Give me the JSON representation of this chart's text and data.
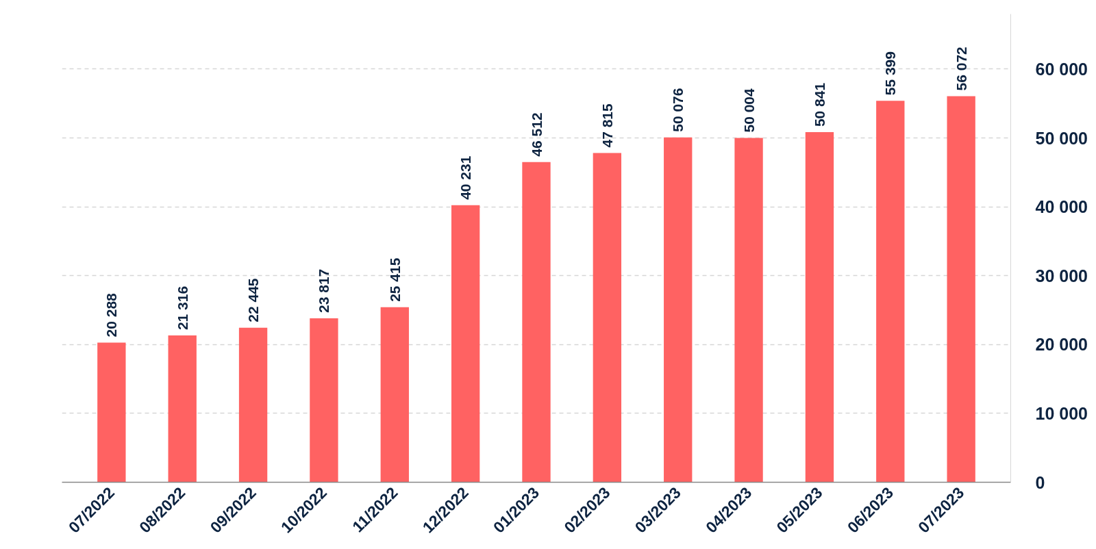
{
  "chart_data": {
    "type": "bar",
    "categories": [
      "07/2022",
      "08/2022",
      "09/2022",
      "10/2022",
      "11/2022",
      "12/2022",
      "01/2023",
      "02/2023",
      "03/2023",
      "04/2023",
      "05/2023",
      "06/2023",
      "07/2023"
    ],
    "values": [
      20288,
      21316,
      22445,
      23817,
      25415,
      40231,
      46512,
      47815,
      50076,
      50004,
      50841,
      55399,
      56072
    ],
    "value_labels": [
      "20 288",
      "21 316",
      "22 445",
      "23 817",
      "25 415",
      "40 231",
      "46 512",
      "47 815",
      "50 076",
      "50 004",
      "50 841",
      "55 399",
      "56 072"
    ],
    "color": "#ff6262",
    "ylim": [
      0,
      68000
    ],
    "yticks": [
      {
        "value": 0,
        "label": "0"
      },
      {
        "value": 10000,
        "label": "10 000"
      },
      {
        "value": 20000,
        "label": "20 000"
      },
      {
        "value": 30000,
        "label": "30 000"
      },
      {
        "value": 40000,
        "label": "40 000"
      },
      {
        "value": 50000,
        "label": "50 000"
      },
      {
        "value": 60000,
        "label": "60 000"
      }
    ],
    "grid": "y"
  }
}
